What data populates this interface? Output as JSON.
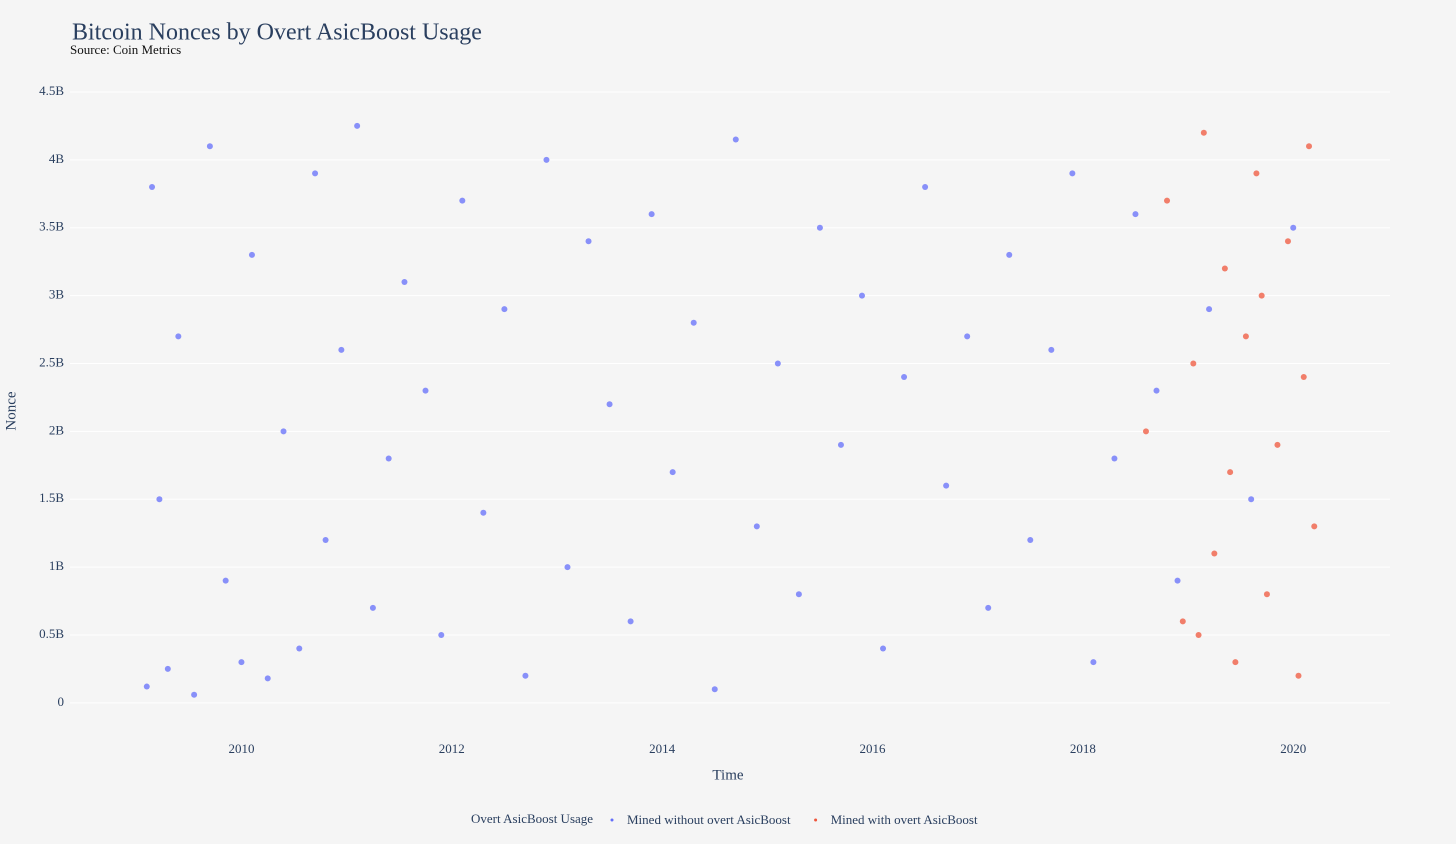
{
  "chart_data": {
    "type": "scatter",
    "title": "Bitcoin Nonces by Overt AsicBoost Usage",
    "subtitle": "Source: Coin Metrics",
    "x_label": "Time",
    "y_label": "Nonce",
    "legend_title": "Overt AsicBoost Usage",
    "xlim": [
      2008.37,
      2020.92
    ],
    "xticks": [
      2010,
      2012,
      2014,
      2016,
      2018,
      2020
    ],
    "ylim": [
      -200000000,
      4600000000
    ],
    "yticks": [
      0,
      {
        "value": 500000000,
        "label": "0.5B"
      },
      {
        "value": 1000000000,
        "label": "1B"
      },
      {
        "value": 1500000000,
        "label": "1.5B"
      },
      {
        "value": 2000000000,
        "label": "2B"
      },
      {
        "value": 2500000000,
        "label": "2.5B"
      },
      {
        "value": 3000000000,
        "label": "3B"
      },
      {
        "value": 3500000000,
        "label": "3.5B"
      },
      {
        "value": 4000000000,
        "label": "4B"
      },
      {
        "value": 4500000000,
        "label": "4.5B"
      }
    ],
    "grid": true,
    "legend_position": "bottom",
    "series": [
      {
        "name": "Mined without overt AsicBoost",
        "color": "#636efa",
        "x": [
          2009.1,
          2009.15,
          2009.22,
          2009.3,
          2009.4,
          2009.55,
          2009.7,
          2009.85,
          2010.0,
          2010.1,
          2010.25,
          2010.4,
          2010.55,
          2010.7,
          2010.8,
          2010.95,
          2011.1,
          2011.25,
          2011.4,
          2011.55,
          2011.75,
          2011.9,
          2012.1,
          2012.3,
          2012.5,
          2012.7,
          2012.9,
          2013.1,
          2013.3,
          2013.5,
          2013.7,
          2013.9,
          2014.1,
          2014.3,
          2014.5,
          2014.7,
          2014.9,
          2015.1,
          2015.3,
          2015.5,
          2015.7,
          2015.9,
          2016.1,
          2016.3,
          2016.5,
          2016.7,
          2016.9,
          2017.1,
          2017.3,
          2017.5,
          2017.7,
          2017.9,
          2018.1,
          2018.3,
          2018.5,
          2018.7,
          2018.9,
          2019.2,
          2019.6,
          2020.0
        ],
        "values": [
          120000000,
          3800000000,
          1500000000,
          250000000,
          2700000000,
          60000000,
          4100000000,
          900000000,
          300000000,
          3300000000,
          180000000,
          2000000000,
          400000000,
          3900000000,
          1200000000,
          2600000000,
          4250000000,
          700000000,
          1800000000,
          3100000000,
          2300000000,
          500000000,
          3700000000,
          1400000000,
          2900000000,
          200000000,
          4000000000,
          1000000000,
          3400000000,
          2200000000,
          600000000,
          3600000000,
          1700000000,
          2800000000,
          100000000,
          4150000000,
          1300000000,
          2500000000,
          800000000,
          3500000000,
          1900000000,
          3000000000,
          400000000,
          2400000000,
          3800000000,
          1600000000,
          2700000000,
          700000000,
          3300000000,
          1200000000,
          2600000000,
          3900000000,
          300000000,
          1800000000,
          3600000000,
          2300000000,
          900000000,
          2900000000,
          1500000000,
          3500000000
        ]
      },
      {
        "name": "Mined with overt AsicBoost",
        "color": "#ef553b",
        "x": [
          2018.6,
          2018.8,
          2018.95,
          2019.05,
          2019.15,
          2019.25,
          2019.35,
          2019.45,
          2019.55,
          2019.65,
          2019.75,
          2019.85,
          2019.95,
          2020.05,
          2020.1,
          2020.15,
          2020.2,
          2019.4,
          2019.1,
          2019.7
        ],
        "values": [
          2000000000,
          3700000000,
          600000000,
          2500000000,
          4200000000,
          1100000000,
          3200000000,
          300000000,
          2700000000,
          3900000000,
          800000000,
          1900000000,
          3400000000,
          200000000,
          2400000000,
          4100000000,
          1300000000,
          1700000000,
          500000000,
          3000000000
        ]
      }
    ]
  }
}
